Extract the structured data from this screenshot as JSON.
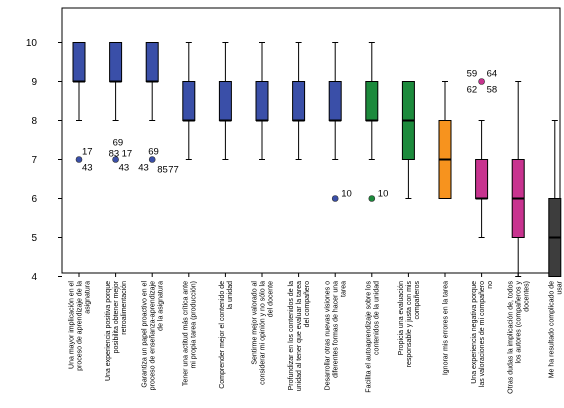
{
  "chart_data": {
    "type": "boxplot",
    "title": "",
    "xlabel": "",
    "ylabel": "",
    "ylim": [
      3.6,
      10.3
    ],
    "yticks": [
      4,
      5,
      6,
      7,
      8,
      9,
      10
    ],
    "grid": false,
    "categories": [
      {
        "label": [
          "Una mayor implicación en el",
          "proceso de aprendizaje de la",
          "asignatura"
        ],
        "color": "#3a4fa8",
        "whisker_low": 8,
        "q1": 9,
        "median": 9,
        "q3": 10,
        "whisker_high": 10,
        "outliers": [
          {
            "value": 7,
            "labels": [
              "17",
              "43"
            ]
          }
        ]
      },
      {
        "label": [
          "Una experiencia positiva porque",
          "posibilita obtener mejor",
          "retroalimentación"
        ],
        "color": "#3a4fa8",
        "whisker_low": 8,
        "q1": 9,
        "median": 9,
        "q3": 10,
        "whisker_high": 10,
        "outliers": [
          {
            "value": 7,
            "labels": [
              "69",
              "83",
              "17",
              "43"
            ]
          }
        ]
      },
      {
        "label": [
          "Garantiza un papel proactivo en el",
          "proceso de enseñanza-aprendizaje",
          "de la asignatura"
        ],
        "color": "#3a4fa8",
        "whisker_low": 8,
        "q1": 9,
        "median": 9,
        "q3": 10,
        "whisker_high": 10,
        "outliers": [
          {
            "value": 7,
            "labels": [
              "69",
              "43",
              "85",
              "77"
            ]
          }
        ]
      },
      {
        "label": [
          "Tener una actitud más crítica ante",
          "mi propia tarea (producción)"
        ],
        "color": "#3a4fa8",
        "whisker_low": 7,
        "q1": 8,
        "median": 8,
        "q3": 9,
        "whisker_high": 10,
        "outliers": []
      },
      {
        "label": [
          "Comprender mejor el contenido de",
          "la unidad"
        ],
        "color": "#3a4fa8",
        "whisker_low": 7,
        "q1": 8,
        "median": 8,
        "q3": 9,
        "whisker_high": 10,
        "outliers": []
      },
      {
        "label": [
          "Sentirme mejor valorado al",
          "considerar mi opinión y no sólo la",
          "del docente"
        ],
        "color": "#3a4fa8",
        "whisker_low": 7,
        "q1": 8,
        "median": 8,
        "q3": 9,
        "whisker_high": 10,
        "outliers": []
      },
      {
        "label": [
          "Profundizar en los contenidos de la",
          "unidad al tener que evaluar la tarea",
          "del compañero"
        ],
        "color": "#3a4fa8",
        "whisker_low": 7,
        "q1": 8,
        "median": 8,
        "q3": 9,
        "whisker_high": 10,
        "outliers": []
      },
      {
        "label": [
          "Desarrollar otras nuevas visiones o",
          "diferentes formas de hacer una",
          "tarea"
        ],
        "color": "#3a4fa8",
        "whisker_low": 7,
        "q1": 8,
        "median": 8,
        "q3": 9,
        "whisker_high": 10,
        "outliers": [
          {
            "value": 6,
            "labels": [
              "10"
            ]
          }
        ]
      },
      {
        "label": [
          "Facilita el autoaprendizaje sobre los",
          "contenidos de la unidad"
        ],
        "color": "#1c8a3c",
        "whisker_low": 7,
        "q1": 8,
        "median": 8,
        "q3": 9,
        "whisker_high": 10,
        "outliers": [
          {
            "value": 6,
            "labels": [
              "10"
            ]
          }
        ]
      },
      {
        "label": [
          "Propicia una evaluación",
          "responsable y justa con mis",
          "compañeros"
        ],
        "color": "#1c8a3c",
        "whisker_low": 6,
        "q1": 7,
        "median": 8,
        "q3": 9,
        "whisker_high": 9,
        "outliers": []
      },
      {
        "label": [
          "Ignorar mis errores en la tarea"
        ],
        "color": "#f7931e",
        "whisker_low": 6,
        "q1": 6,
        "median": 7,
        "q3": 8,
        "whisker_high": 9,
        "outliers": []
      },
      {
        "label": [
          "Una experiencia negativa porque",
          "las valoraciones de mi compañero",
          "no"
        ],
        "color": "#c8338f",
        "whisker_low": 5,
        "q1": 6,
        "median": 6,
        "q3": 7,
        "whisker_high": 8,
        "outliers": [
          {
            "value": 9,
            "labels": [
              "59",
              "64",
              "62",
              "58"
            ]
          }
        ]
      },
      {
        "label": [
          "Otras dudas la implicación de, todos",
          "los autores (compañeros y",
          "docentes)"
        ],
        "color": "#c8338f",
        "whisker_low": 4,
        "q1": 5,
        "median": 6,
        "q3": 7,
        "whisker_high": 9,
        "outliers": []
      },
      {
        "label": [
          "Me ha resultado complicado de",
          "usar"
        ],
        "color": "#3d3d3d",
        "whisker_low": 4,
        "q1": 4,
        "median": 5,
        "q3": 6,
        "whisker_high": 8,
        "outliers": []
      }
    ]
  }
}
